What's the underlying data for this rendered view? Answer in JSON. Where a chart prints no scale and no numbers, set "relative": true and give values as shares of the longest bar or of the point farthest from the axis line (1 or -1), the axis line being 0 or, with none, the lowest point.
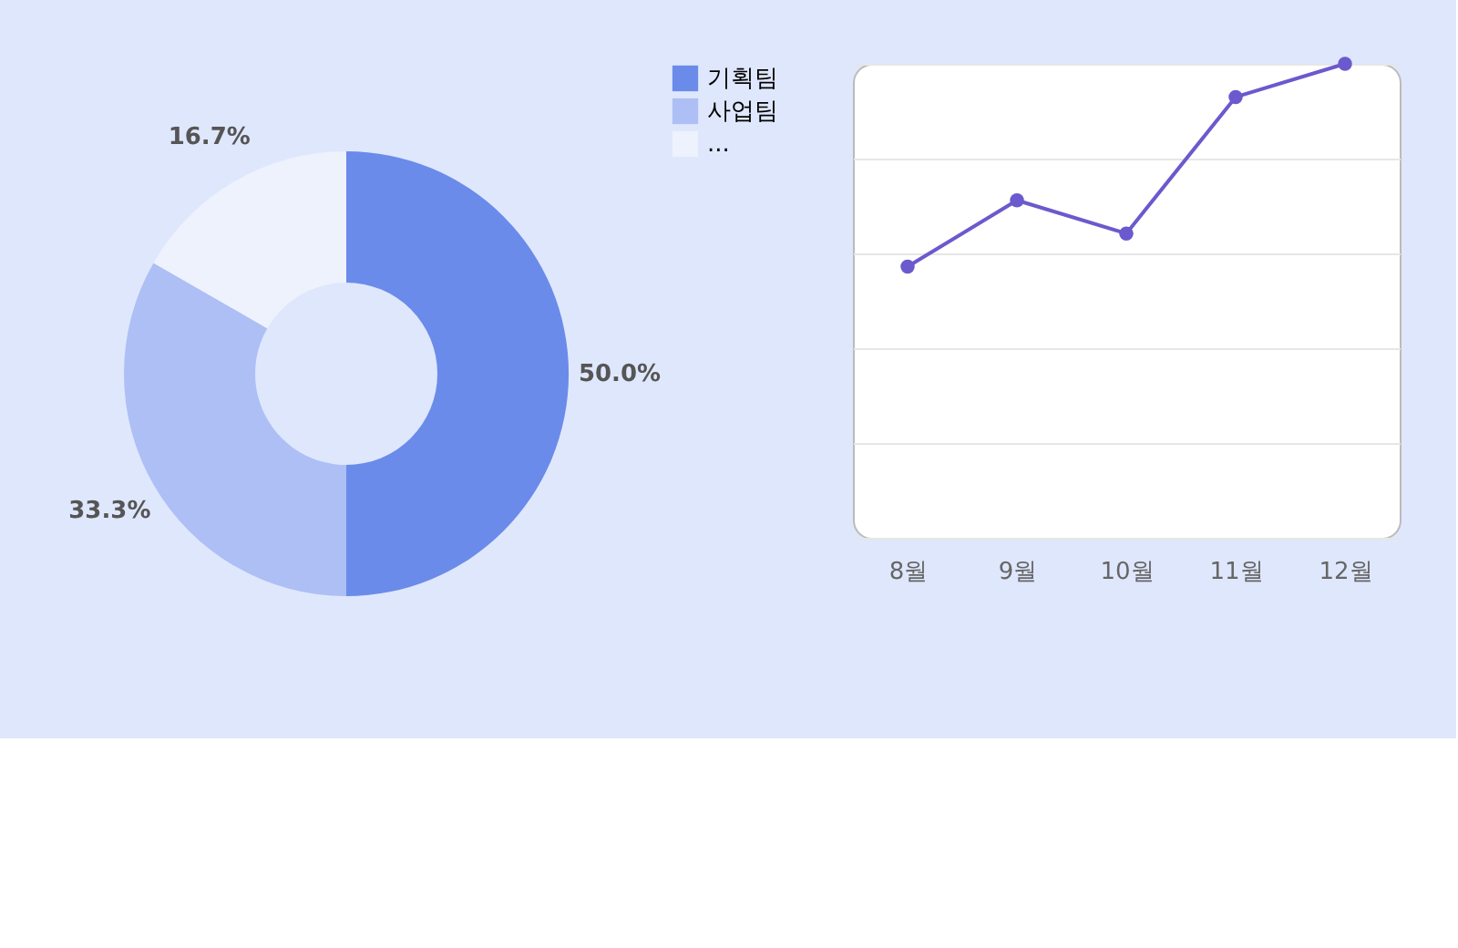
{
  "chart_data": [
    {
      "type": "donut",
      "categories": [
        "기획팀",
        "사업팀",
        "..."
      ],
      "values": [
        50,
        33.3,
        16.7
      ],
      "colors": [
        "#6a8be9",
        "#adbff4",
        "#eef2fd"
      ],
      "value_labels": [
        "50.0%",
        "33.3%",
        "16.7%"
      ],
      "legend": "right"
    },
    {
      "type": "line",
      "categories": [
        "8월",
        "9월",
        "10월",
        "11월",
        "12월"
      ],
      "relative": true,
      "series": [
        {
          "color": "#6a5acd",
          "values": [
            0.572,
            0.712,
            0.642,
            0.93,
            1
          ]
        }
      ],
      "marker": "circle",
      "grid": "y",
      "tick_labels": "x"
    }
  ]
}
